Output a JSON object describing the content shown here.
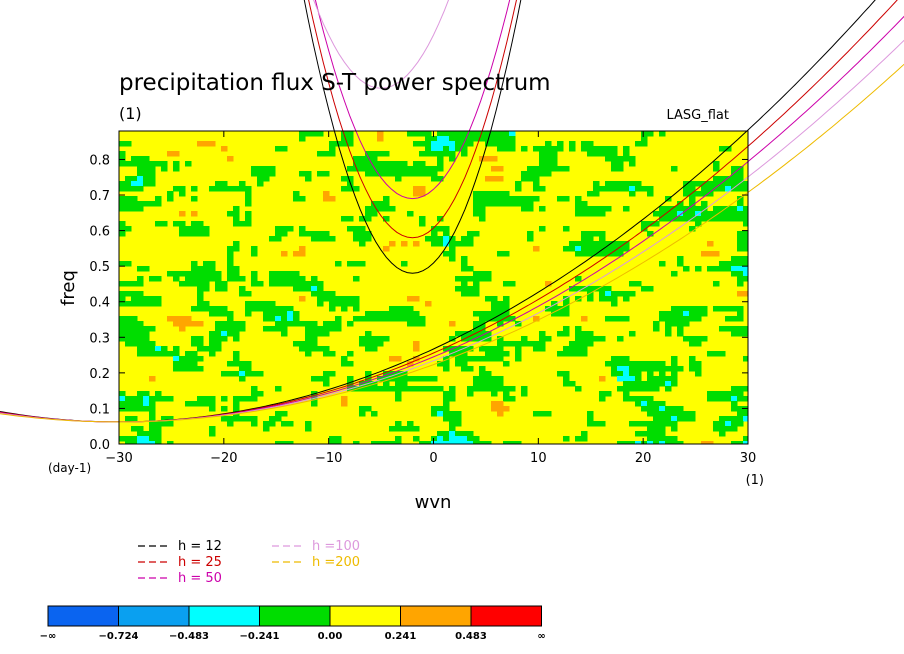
{
  "chart_data": {
    "type": "heatmap",
    "title": "precipitation flux S-T power spectrum",
    "unit_label": "(1)",
    "source_label": "LASG_flat",
    "xlabel": "wvn",
    "ylabel": "freq",
    "x_unit": "(1)",
    "y_unit": "(day-1)",
    "xlim": [
      -30,
      30
    ],
    "ylim": [
      0,
      0.88
    ],
    "xticks": [
      -30,
      -20,
      -10,
      0,
      10,
      20,
      30
    ],
    "xtick_labels": [
      "−30",
      "−20",
      "−10",
      "0",
      "10",
      "20",
      "30"
    ],
    "yticks": [
      0.0,
      0.1,
      0.2,
      0.3,
      0.4,
      0.5,
      0.6,
      0.7,
      0.8
    ],
    "ytick_labels": [
      "0.0",
      "0.1",
      "0.2",
      "0.3",
      "0.4",
      "0.5",
      "0.6",
      "0.7",
      "0.8"
    ],
    "dispersion_legend": [
      {
        "label": "h = 12",
        "h": 12,
        "color": "#000000"
      },
      {
        "label": "h = 25",
        "h": 25,
        "color": "#cc0000"
      },
      {
        "label": "h = 50",
        "h": 50,
        "color": "#cc00aa"
      },
      {
        "label": "h =100",
        "h": 100,
        "color": "#dd99dd"
      },
      {
        "label": "h =200",
        "h": 200,
        "color": "#eebb00"
      }
    ],
    "field_description": "noisy field, values mostly in [-0.241, 0.241]",
    "colorbar": {
      "colors": [
        "#0a64f0",
        "#0aa0f0",
        "#00ffff",
        "#00dd00",
        "#ffff00",
        "#ffa500",
        "#ff0000"
      ],
      "labels": [
        "−∞",
        "−0.724",
        "−0.483",
        "−0.241",
        "0.00",
        "0.241",
        "0.483",
        "∞"
      ]
    }
  }
}
